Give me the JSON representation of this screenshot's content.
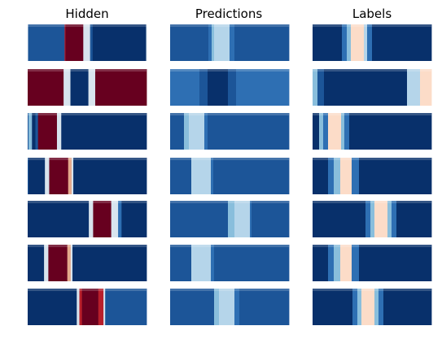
{
  "colors": {
    "d": "#08306b",
    "m": "#1c5598",
    "b": "#2e6fb3",
    "lb": "#89bedc",
    "vlb": "#b5d5ea",
    "p": "#fcdcc8",
    "s": "#d8e4ee",
    "dr": "#67001f",
    "r": "#b81f2b",
    "sr": "#e4a98c"
  },
  "chart_data": [
    {
      "type": "heatmap",
      "title": "Hidden",
      "panels": [
        [
          [
            "s",
            0.5
          ],
          [
            "m",
            43
          ],
          [
            "r",
            1
          ],
          [
            "dr",
            21
          ],
          [
            "s",
            8
          ],
          [
            "m",
            3
          ],
          [
            "d",
            63
          ],
          [
            "s",
            0.5
          ]
        ],
        [
          [
            "dr",
            42
          ],
          [
            "s",
            8
          ],
          [
            "d",
            21
          ],
          [
            "s",
            8
          ],
          [
            "dr",
            60
          ]
        ],
        [
          [
            "m",
            1
          ],
          [
            "lb",
            4
          ],
          [
            "d",
            4
          ],
          [
            "m",
            3
          ],
          [
            "dr",
            22
          ],
          [
            "s",
            5
          ],
          [
            "d",
            99
          ]
        ],
        [
          [
            "m",
            1
          ],
          [
            "d",
            19
          ],
          [
            "s",
            5
          ],
          [
            "dr",
            22
          ],
          [
            "sr",
            4
          ],
          [
            "s",
            2
          ],
          [
            "d",
            85
          ]
        ],
        [
          [
            "d",
            71
          ],
          [
            "s",
            5
          ],
          [
            "dr",
            21
          ],
          [
            "s",
            8
          ],
          [
            "b",
            4
          ],
          [
            "d",
            29
          ]
        ],
        [
          [
            "d",
            19
          ],
          [
            "s",
            5
          ],
          [
            "dr",
            22
          ],
          [
            "sr",
            4
          ],
          [
            "s",
            2
          ],
          [
            "d",
            86
          ]
        ],
        [
          [
            "d",
            57
          ],
          [
            "s",
            3
          ],
          [
            "r",
            3
          ],
          [
            "dr",
            19
          ],
          [
            "r",
            6
          ],
          [
            "s",
            2
          ],
          [
            "m",
            48
          ]
        ]
      ]
    },
    {
      "type": "heatmap",
      "title": "Predictions",
      "panels": [
        [
          [
            "m",
            47
          ],
          [
            "b",
            4
          ],
          [
            "lb",
            3
          ],
          [
            "vlb",
            19
          ],
          [
            "b",
            6
          ],
          [
            "m",
            67
          ]
        ],
        [
          [
            "b",
            36
          ],
          [
            "m",
            10
          ],
          [
            "d",
            25
          ],
          [
            "m",
            10
          ],
          [
            "b",
            65
          ]
        ],
        [
          [
            "m",
            17
          ],
          [
            "lb",
            6
          ],
          [
            "vlb",
            19
          ],
          [
            "b",
            4
          ],
          [
            "m",
            100
          ]
        ],
        [
          [
            "m",
            26
          ],
          [
            "vlb",
            24
          ],
          [
            "b",
            3
          ],
          [
            "m",
            93
          ]
        ],
        [
          [
            "m",
            71
          ],
          [
            "lb",
            8
          ],
          [
            "vlb",
            19
          ],
          [
            "b",
            2
          ],
          [
            "m",
            46
          ]
        ],
        [
          [
            "m",
            26
          ],
          [
            "vlb",
            24
          ],
          [
            "b",
            4
          ],
          [
            "m",
            92
          ]
        ],
        [
          [
            "m",
            54
          ],
          [
            "lb",
            6
          ],
          [
            "vlb",
            19
          ],
          [
            "b",
            6
          ],
          [
            "m",
            61
          ]
        ]
      ]
    },
    {
      "type": "heatmap",
      "title": "Labels",
      "panels": [
        [
          [
            "d",
            36
          ],
          [
            "b",
            6
          ],
          [
            "lb",
            5
          ],
          [
            "p",
            16
          ],
          [
            "vlb",
            4
          ],
          [
            "b",
            6
          ],
          [
            "d",
            73
          ]
        ],
        [
          [
            "lb",
            6
          ],
          [
            "m",
            8
          ],
          [
            "d",
            102
          ],
          [
            "vlb",
            16
          ],
          [
            "p",
            14
          ]
        ],
        [
          [
            "d",
            8
          ],
          [
            "lb",
            5
          ],
          [
            "b",
            6
          ],
          [
            "p",
            16
          ],
          [
            "lb",
            4
          ],
          [
            "b",
            6
          ],
          [
            "d",
            101
          ]
        ],
        [
          [
            "d",
            19
          ],
          [
            "b",
            7
          ],
          [
            "lb",
            8
          ],
          [
            "p",
            14
          ],
          [
            "b",
            9
          ],
          [
            "d",
            89
          ]
        ],
        [
          [
            "d",
            65
          ],
          [
            "b",
            6
          ],
          [
            "lb",
            5
          ],
          [
            "p",
            16
          ],
          [
            "lb",
            5
          ],
          [
            "b",
            6
          ],
          [
            "d",
            43
          ]
        ],
        [
          [
            "d",
            19
          ],
          [
            "b",
            7
          ],
          [
            "lb",
            8
          ],
          [
            "p",
            14
          ],
          [
            "b",
            9
          ],
          [
            "d",
            89
          ]
        ],
        [
          [
            "d",
            49
          ],
          [
            "b",
            6
          ],
          [
            "lb",
            5
          ],
          [
            "p",
            16
          ],
          [
            "lb",
            5
          ],
          [
            "b",
            6
          ],
          [
            "d",
            59
          ]
        ]
      ]
    }
  ]
}
